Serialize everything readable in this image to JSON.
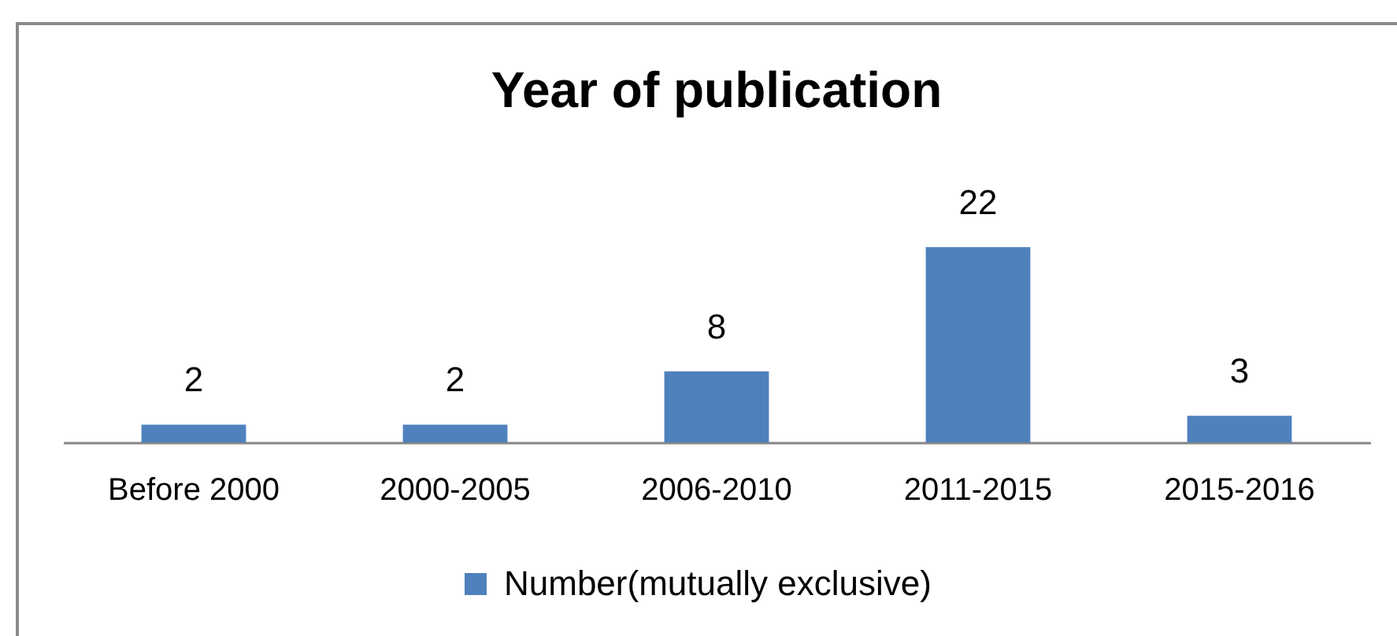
{
  "chart_data": {
    "type": "bar",
    "title": "Year of publication",
    "categories": [
      "Before 2000",
      "2000-2005",
      "2006-2010",
      "2011-2015",
      "2015-2016"
    ],
    "series": [
      {
        "name": "Number(mutually exclusive)",
        "color": "#4f81bd",
        "values": [
          2,
          2,
          8,
          22,
          3
        ]
      }
    ],
    "tick_labels": "x",
    "data_labels": true,
    "legend": "bottom"
  }
}
